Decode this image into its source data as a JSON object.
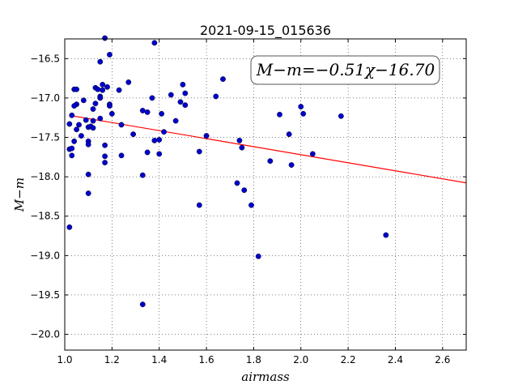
{
  "chart_data": {
    "type": "scatter",
    "title": "2021-09-15_015636",
    "xlabel": "airmass",
    "ylabel": "M−m",
    "xlim": [
      1.0,
      2.7
    ],
    "ylim": [
      -20.2,
      -16.25
    ],
    "y_inverted": true,
    "grid": true,
    "x_ticks": [
      1.0,
      1.2,
      1.4,
      1.6,
      1.8,
      2.0,
      2.2,
      2.4,
      2.6
    ],
    "x_tick_labels": [
      "1.0",
      "1.2",
      "1.4",
      "1.6",
      "1.8",
      "2.0",
      "2.2",
      "2.4",
      "2.6"
    ],
    "y_ticks": [
      -16.5,
      -17.0,
      -17.5,
      -18.0,
      -18.5,
      -19.0,
      -19.5,
      -20.0
    ],
    "y_tick_labels": [
      "−16.5",
      "−17.0",
      "−17.5",
      "−18.0",
      "−18.5",
      "−19.0",
      "−19.5",
      "−20.0"
    ],
    "annotation": "M−m=−0.51χ−16.70",
    "colors": {
      "points": "#0000cc",
      "fit": "#ff0000"
    },
    "fit": {
      "slope": -0.51,
      "intercept": -16.7
    },
    "points": [
      [
        1.02,
        -17.33
      ],
      [
        1.02,
        -17.65
      ],
      [
        1.03,
        -17.64
      ],
      [
        1.03,
        -17.22
      ],
      [
        1.03,
        -17.73
      ],
      [
        1.02,
        -18.64
      ],
      [
        1.04,
        -17.55
      ],
      [
        1.04,
        -16.89
      ],
      [
        1.05,
        -16.89
      ],
      [
        1.05,
        -17.08
      ],
      [
        1.04,
        -17.1
      ],
      [
        1.05,
        -17.4
      ],
      [
        1.06,
        -17.34
      ],
      [
        1.07,
        -17.48
      ],
      [
        1.08,
        -17.03
      ],
      [
        1.09,
        -17.28
      ],
      [
        1.1,
        -17.37
      ],
      [
        1.1,
        -17.55
      ],
      [
        1.1,
        -17.59
      ],
      [
        1.1,
        -17.97
      ],
      [
        1.1,
        -18.21
      ],
      [
        1.11,
        -17.36
      ],
      [
        1.12,
        -17.38
      ],
      [
        1.12,
        -17.29
      ],
      [
        1.12,
        -17.14
      ],
      [
        1.13,
        -17.07
      ],
      [
        1.13,
        -16.87
      ],
      [
        1.14,
        -16.89
      ],
      [
        1.15,
        -16.98
      ],
      [
        1.15,
        -17.0
      ],
      [
        1.15,
        -16.54
      ],
      [
        1.15,
        -17.26
      ],
      [
        1.16,
        -16.9
      ],
      [
        1.16,
        -16.83
      ],
      [
        1.17,
        -16.24
      ],
      [
        1.17,
        -17.6
      ],
      [
        1.17,
        -17.82
      ],
      [
        1.17,
        -17.74
      ],
      [
        1.18,
        -16.86
      ],
      [
        1.19,
        -16.45
      ],
      [
        1.19,
        -17.08
      ],
      [
        1.19,
        -17.1
      ],
      [
        1.2,
        -17.2
      ],
      [
        1.23,
        -16.9
      ],
      [
        1.24,
        -17.34
      ],
      [
        1.24,
        -17.73
      ],
      [
        1.27,
        -16.8
      ],
      [
        1.29,
        -17.46
      ],
      [
        1.33,
        -17.16
      ],
      [
        1.33,
        -17.98
      ],
      [
        1.33,
        -19.62
      ],
      [
        1.35,
        -17.18
      ],
      [
        1.35,
        -17.69
      ],
      [
        1.37,
        -17.0
      ],
      [
        1.38,
        -16.3
      ],
      [
        1.38,
        -17.54
      ],
      [
        1.4,
        -17.53
      ],
      [
        1.4,
        -17.71
      ],
      [
        1.41,
        -17.2
      ],
      [
        1.42,
        -17.43
      ],
      [
        1.45,
        -16.96
      ],
      [
        1.47,
        -17.29
      ],
      [
        1.49,
        -17.05
      ],
      [
        1.5,
        -16.83
      ],
      [
        1.51,
        -16.94
      ],
      [
        1.51,
        -17.09
      ],
      [
        1.57,
        -18.36
      ],
      [
        1.57,
        -17.68
      ],
      [
        1.6,
        -17.48
      ],
      [
        1.64,
        -16.98
      ],
      [
        1.67,
        -16.76
      ],
      [
        1.73,
        -18.08
      ],
      [
        1.74,
        -17.54
      ],
      [
        1.75,
        -17.63
      ],
      [
        1.76,
        -18.17
      ],
      [
        1.79,
        -18.36
      ],
      [
        1.82,
        -19.01
      ],
      [
        1.87,
        -17.8
      ],
      [
        1.91,
        -17.21
      ],
      [
        1.95,
        -17.46
      ],
      [
        1.96,
        -17.85
      ],
      [
        2.0,
        -17.11
      ],
      [
        2.01,
        -17.2
      ],
      [
        2.05,
        -17.71
      ],
      [
        2.17,
        -17.23
      ],
      [
        2.36,
        -18.74
      ]
    ]
  }
}
